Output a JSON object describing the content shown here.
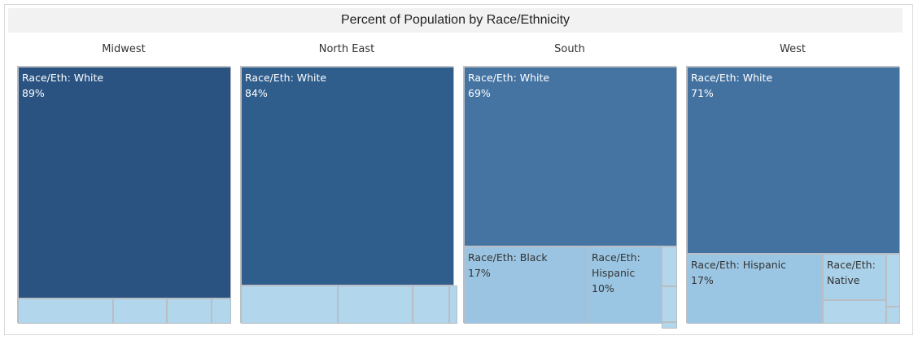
{
  "title": "Percent of Population by Race/Ethnicity",
  "colors": {
    "midwest_white": "#2a5382",
    "northeast_white": "#2f5d8c",
    "south_white": "#4574a3",
    "west_white": "#4372a1",
    "black": "#9ac4e2",
    "hispanic": "#9bc6e3",
    "native": "#a9d1ea",
    "other": "#b2d6ec"
  },
  "chart_data": {
    "type": "treemap",
    "title": "Percent of Population by Race/Ethnicity",
    "panels": [
      {
        "region": "Midwest",
        "tiles": [
          {
            "key": "white",
            "label": "Race/Eth: White",
            "value_text": "89%",
            "value": 89,
            "color": "midwest_white",
            "dark": true
          },
          {
            "key": "m2",
            "label": "",
            "value_text": "",
            "value": 5,
            "color": "other",
            "dark": false
          },
          {
            "key": "m3",
            "label": "",
            "value_text": "",
            "value": 3,
            "color": "other",
            "dark": false
          },
          {
            "key": "m4",
            "label": "",
            "value_text": "",
            "value": 2,
            "color": "other",
            "dark": false
          },
          {
            "key": "m5",
            "label": "",
            "value_text": "",
            "value": 1,
            "color": "other",
            "dark": false
          }
        ]
      },
      {
        "region": "North East",
        "tiles": [
          {
            "key": "white",
            "label": "Race/Eth: White",
            "value_text": "84%",
            "value": 84,
            "color": "northeast_white",
            "dark": true
          },
          {
            "key": "n2",
            "label": "",
            "value_text": "",
            "value": 6,
            "color": "other",
            "dark": false
          },
          {
            "key": "n3",
            "label": "",
            "value_text": "",
            "value": 6,
            "color": "other",
            "dark": false
          },
          {
            "key": "n4",
            "label": "",
            "value_text": "",
            "value": 3,
            "color": "other",
            "dark": false
          },
          {
            "key": "n5",
            "label": "",
            "value_text": "",
            "value": 1,
            "color": "other",
            "dark": false
          }
        ]
      },
      {
        "region": "South",
        "tiles": [
          {
            "key": "white",
            "label": "Race/Eth: White",
            "value_text": "69%",
            "value": 69,
            "color": "south_white",
            "dark": true
          },
          {
            "key": "black",
            "label": "Race/Eth: Black",
            "value_text": "17%",
            "value": 17,
            "color": "black",
            "dark": false
          },
          {
            "key": "hispanic",
            "label": "Race/Eth: Hispanic",
            "value_text": "10%",
            "value": 10,
            "color": "hispanic",
            "dark": false
          },
          {
            "key": "s4",
            "label": "",
            "value_text": "",
            "value": 2,
            "color": "other",
            "dark": false
          },
          {
            "key": "s5",
            "label": "",
            "value_text": "",
            "value": 1.5,
            "color": "other",
            "dark": false
          },
          {
            "key": "s6",
            "label": "",
            "value_text": "",
            "value": 0.5,
            "color": "other",
            "dark": false
          }
        ]
      },
      {
        "region": "West",
        "tiles": [
          {
            "key": "white",
            "label": "Race/Eth: White",
            "value_text": "71%",
            "value": 71,
            "color": "west_white",
            "dark": true
          },
          {
            "key": "hispanic",
            "label": "Race/Eth: Hispanic",
            "value_text": "17%",
            "value": 17,
            "color": "hispanic",
            "dark": false
          },
          {
            "key": "native",
            "label": "Race/Eth: Native",
            "value_text": "",
            "value": 7,
            "color": "native",
            "dark": false
          },
          {
            "key": "w4",
            "label": "",
            "value_text": "",
            "value": 3,
            "color": "other",
            "dark": false
          },
          {
            "key": "w5",
            "label": "",
            "value_text": "",
            "value": 1.5,
            "color": "other",
            "dark": false
          },
          {
            "key": "w6",
            "label": "",
            "value_text": "",
            "value": 0.5,
            "color": "other",
            "dark": false
          }
        ]
      }
    ]
  }
}
